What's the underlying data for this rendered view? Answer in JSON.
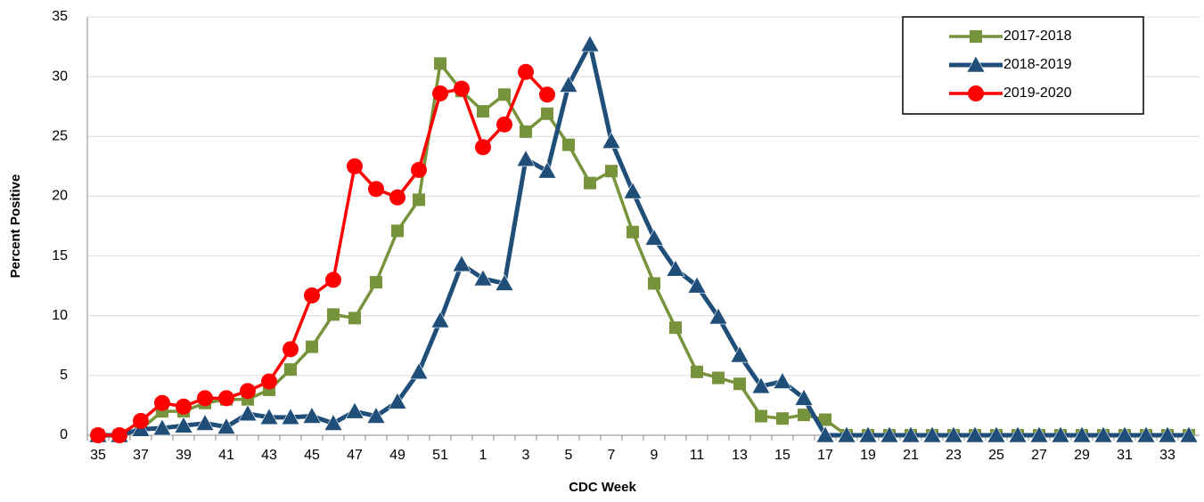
{
  "chart_data": {
    "type": "line",
    "x_label": "CDC Week",
    "y_label": "Percent Positive",
    "categories": [
      "35",
      null,
      "37",
      null,
      "39",
      null,
      "41",
      null,
      "43",
      null,
      "45",
      null,
      "47",
      null,
      "49",
      null,
      "51",
      null,
      "1",
      null,
      "3",
      null,
      "5",
      null,
      "7",
      null,
      "9",
      null,
      "11",
      null,
      "13",
      null,
      "15",
      null,
      "17",
      null,
      "19",
      null,
      "21",
      null,
      "23",
      null,
      "25",
      null,
      "27",
      null,
      "29",
      null,
      "31",
      null,
      "33",
      null
    ],
    "series": [
      {
        "name": "2017-2018",
        "color": "#77933c",
        "marker": "square",
        "values": [
          0,
          0,
          0.5,
          2.0,
          2.0,
          2.7,
          3.0,
          3.0,
          3.8,
          5.5,
          7.4,
          10.1,
          9.8,
          12.8,
          17.1,
          19.7,
          31.1,
          28.8,
          27.1,
          28.5,
          25.4,
          26.9,
          24.3,
          21.1,
          22.1,
          17.0,
          12.7,
          9.0,
          5.3,
          4.8,
          4.3,
          1.6,
          1.4,
          1.7,
          1.3,
          0,
          0,
          0,
          0,
          0,
          0,
          0,
          0,
          0,
          0,
          0,
          0,
          0,
          0,
          0,
          0,
          0
        ]
      },
      {
        "name": "2018-2019",
        "color": "#1f4e79",
        "marker": "triangle",
        "values": [
          0,
          0,
          0.5,
          0.6,
          0.8,
          1.0,
          0.7,
          1.8,
          1.5,
          1.5,
          1.6,
          1.0,
          2.0,
          1.6,
          2.8,
          5.3,
          9.6,
          14.3,
          13.1,
          12.7,
          23.1,
          22.1,
          29.3,
          32.7,
          24.6,
          20.4,
          16.5,
          13.9,
          12.5,
          9.9,
          6.7,
          4.1,
          4.5,
          3.1,
          0,
          0,
          0,
          0,
          0,
          0,
          0,
          0,
          0,
          0,
          0,
          0,
          0,
          0,
          0,
          0,
          0,
          0
        ]
      },
      {
        "name": "2019-2020",
        "color": "#ff0000",
        "marker": "circle",
        "values": [
          0,
          0,
          1.2,
          2.7,
          2.4,
          3.1,
          3.1,
          3.7,
          4.5,
          7.2,
          11.7,
          13.0,
          22.5,
          20.6,
          19.9,
          22.2,
          28.6,
          29.0,
          24.1,
          26.0,
          30.4,
          28.5,
          null,
          null,
          null,
          null,
          null,
          null,
          null,
          null,
          null,
          null,
          null,
          null,
          null,
          null,
          null,
          null,
          null,
          null,
          null,
          null,
          null,
          null,
          null,
          null,
          null,
          null,
          null,
          null,
          null,
          null
        ]
      }
    ],
    "ylim": [
      0,
      35
    ],
    "yticks": [
      0,
      5,
      10,
      15,
      20,
      25,
      30,
      35
    ],
    "grid": true,
    "legend": "top-right"
  }
}
